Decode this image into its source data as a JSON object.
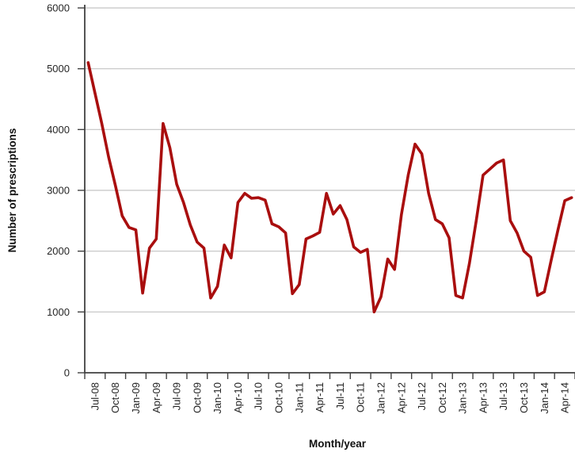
{
  "chart_data": {
    "type": "line",
    "title": "",
    "xlabel": "Month/year",
    "ylabel": "Number of prescriptions",
    "line_color": "#a90e0e",
    "grid": "horizontal-only",
    "legend": "none",
    "ylim": [
      0,
      6000
    ],
    "y_tick_step": 1000,
    "y_tick_labels": [
      "0",
      "1000",
      "2000",
      "3000",
      "4000",
      "5000",
      "6000"
    ],
    "x_label_every": 3,
    "x_tick_labels": [
      "Jul-08",
      "Oct-08",
      "Jan-09",
      "Apr-09",
      "Jul-09",
      "Oct-09",
      "Jan-10",
      "Apr-10",
      "Jul-10",
      "Oct-10",
      "Jan-11",
      "Apr-11",
      "Jul-11",
      "Oct-11",
      "Jan-12",
      "Apr-12",
      "Jul-12",
      "Oct-12",
      "Jan-13",
      "Apr-13",
      "Jul-13",
      "Oct-13",
      "Jan-14",
      "Apr-14"
    ],
    "x": [
      "Jul-08",
      "Aug-08",
      "Sep-08",
      "Oct-08",
      "Nov-08",
      "Dec-08",
      "Jan-09",
      "Feb-09",
      "Mar-09",
      "Apr-09",
      "May-09",
      "Jun-09",
      "Jul-09",
      "Aug-09",
      "Sep-09",
      "Oct-09",
      "Nov-09",
      "Dec-09",
      "Jan-10",
      "Feb-10",
      "Mar-10",
      "Apr-10",
      "May-10",
      "Jun-10",
      "Jul-10",
      "Aug-10",
      "Sep-10",
      "Oct-10",
      "Nov-10",
      "Dec-10",
      "Jan-11",
      "Feb-11",
      "Mar-11",
      "Apr-11",
      "May-11",
      "Jun-11",
      "Jul-11",
      "Aug-11",
      "Sep-11",
      "Oct-11",
      "Nov-11",
      "Dec-11",
      "Jan-12",
      "Feb-12",
      "Mar-12",
      "Apr-12",
      "May-12",
      "Jun-12",
      "Jul-12",
      "Aug-12",
      "Sep-12",
      "Oct-12",
      "Nov-12",
      "Dec-12",
      "Jan-13",
      "Feb-13",
      "Mar-13",
      "Apr-13",
      "May-13",
      "Jun-13",
      "Jul-13",
      "Aug-13",
      "Sep-13",
      "Oct-13",
      "Nov-13",
      "Dec-13",
      "Jan-14",
      "Feb-14",
      "Mar-14",
      "Apr-14",
      "May-14",
      "Jun-14"
    ],
    "values": [
      5100,
      4600,
      4100,
      3550,
      3080,
      2580,
      2390,
      2350,
      1310,
      2050,
      2200,
      4100,
      3700,
      3100,
      2800,
      2430,
      2150,
      2050,
      1230,
      1420,
      2100,
      1890,
      2800,
      2950,
      2870,
      2880,
      2840,
      2450,
      2400,
      2300,
      1300,
      1450,
      2200,
      2250,
      2310,
      2950,
      2610,
      2750,
      2520,
      2070,
      1980,
      2030,
      1000,
      1250,
      1870,
      1700,
      2600,
      3250,
      3760,
      3600,
      2950,
      2520,
      2450,
      2220,
      1270,
      1230,
      1800,
      2500,
      3250,
      3350,
      3450,
      3500,
      2500,
      2300,
      2000,
      1900,
      1270,
      1330,
      1850,
      2350,
      2830,
      2880
    ]
  },
  "colors": {
    "gridline": "#c3c3c3",
    "axis": "#404040",
    "text": "#262626"
  }
}
